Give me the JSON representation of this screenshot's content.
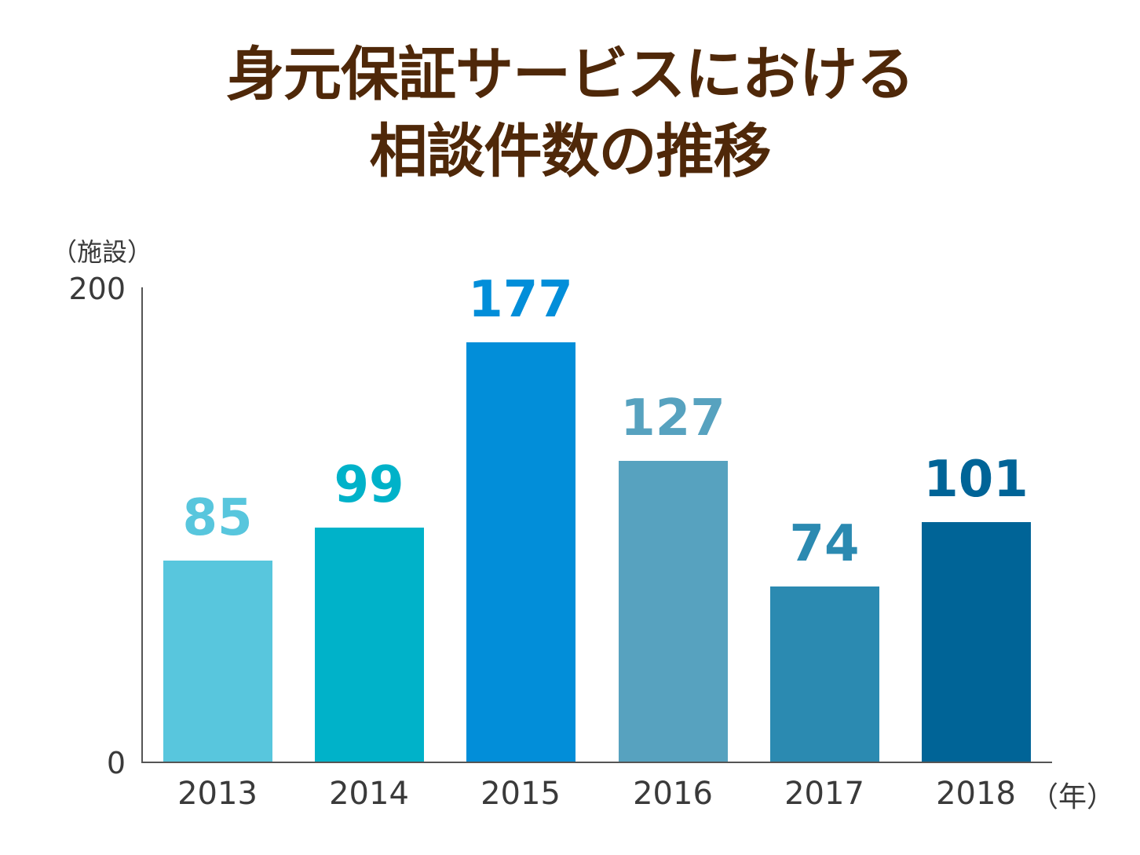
{
  "title": {
    "line1": "身元保証サービスにおける",
    "line2": "相談件数の推移"
  },
  "axes": {
    "y_unit": "（施設）",
    "x_unit": "（年）",
    "y_ticks": [
      "0",
      "200"
    ]
  },
  "chart_data": {
    "type": "bar",
    "title": "身元保証サービスにおける相談件数の推移",
    "xlabel": "（年）",
    "ylabel": "（施設）",
    "ylim": [
      0,
      200
    ],
    "grid": false,
    "legend": null,
    "categories": [
      "2013",
      "2014",
      "2015",
      "2016",
      "2017",
      "2018"
    ],
    "values": [
      85,
      99,
      177,
      127,
      74,
      101
    ],
    "value_labels": [
      "85",
      "99",
      "177",
      "127",
      "74",
      "101"
    ],
    "colors": [
      "#58c6dd",
      "#00b2c9",
      "#028ed9",
      "#57a2bf",
      "#2b8ab1",
      "#006497"
    ]
  }
}
